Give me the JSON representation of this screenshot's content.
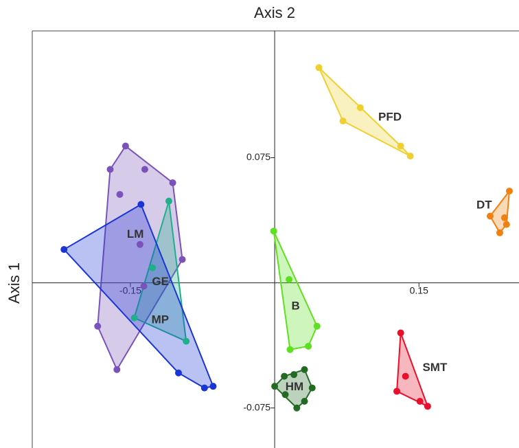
{
  "chart_data": {
    "type": "scatter-hull",
    "x_label": "Axis 2",
    "y_label": "Axis 1",
    "xlim": [
      -0.252,
      0.254
    ],
    "ylim": [
      -0.099,
      0.151
    ],
    "xticks": [
      -0.15,
      0.15
    ],
    "yticks": [
      0.075,
      -0.075
    ],
    "series": [
      {
        "name": "LM",
        "color": "#7b52b9",
        "x": [
          -0.155,
          -0.171,
          -0.135,
          -0.106,
          -0.161,
          -0.14,
          -0.096,
          -0.136,
          -0.184,
          -0.164
        ],
        "values": [
          0.082,
          0.068,
          0.068,
          0.06,
          0.053,
          0.023,
          0.014,
          -0.002,
          -0.026,
          -0.052
        ]
      },
      {
        "name": "GE",
        "color": "#1fb08a",
        "x": [
          -0.11,
          -0.127,
          -0.146,
          -0.092
        ],
        "values": [
          0.049,
          0.009,
          -0.021,
          -0.035
        ]
      },
      {
        "name": "MP",
        "color": "#1a35d6",
        "x": [
          -0.219,
          -0.139,
          -0.1,
          -0.073,
          -0.064
        ],
        "values": [
          0.02,
          0.047,
          -0.054,
          -0.063,
          -0.062
        ]
      },
      {
        "name": "PFD",
        "color": "#f0d030",
        "x": [
          0.046,
          0.089,
          0.071,
          0.131,
          0.141
        ],
        "values": [
          0.129,
          0.105,
          0.097,
          0.082,
          0.076
        ]
      },
      {
        "name": "DT",
        "color": "#f08010",
        "x": [
          0.244,
          0.239,
          0.224,
          0.241,
          0.234
        ],
        "values": [
          0.055,
          0.039,
          0.04,
          0.035,
          0.03
        ]
      },
      {
        "name": "B",
        "color": "#5ee020",
        "x": [
          -0.001,
          0.015,
          0.044,
          0.035,
          0.016
        ],
        "values": [
          0.031,
          0.002,
          -0.026,
          -0.038,
          -0.04
        ]
      },
      {
        "name": "HM",
        "color": "#236b23",
        "x": [
          0.0,
          0.01,
          0.02,
          0.031,
          0.039,
          0.031,
          0.023,
          0.011
        ],
        "values": [
          -0.062,
          -0.056,
          -0.055,
          -0.052,
          -0.063,
          -0.071,
          -0.075,
          -0.067
        ]
      },
      {
        "name": "SMT",
        "color": "#e8102a",
        "x": [
          0.131,
          0.136,
          0.127,
          0.151,
          0.159
        ],
        "values": [
          -0.03,
          -0.056,
          -0.065,
          -0.071,
          -0.074
        ]
      }
    ]
  }
}
